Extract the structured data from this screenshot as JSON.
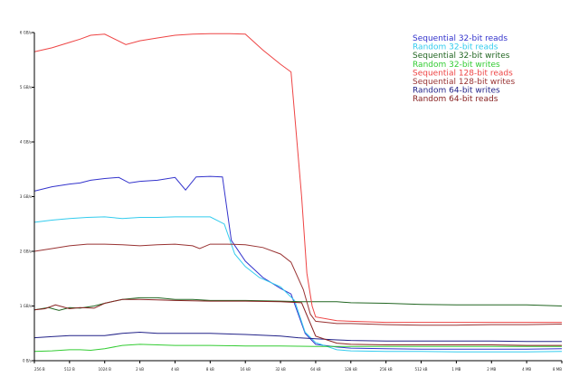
{
  "chart_data": {
    "type": "line",
    "x_scale": "log2",
    "grid": false,
    "legend_position": "top-right",
    "categories": [
      "256 B",
      "512 B",
      "1024 B",
      "2 kB",
      "4 kB",
      "8 kB",
      "16 kB",
      "32 kB",
      "64 kB",
      "128 kB",
      "256 kB",
      "512 kB",
      "1 MB",
      "2 MB",
      "4 MB",
      "8 MB"
    ],
    "yticks": [
      "0 B/s",
      "1 GB/s",
      "2 GB/s",
      "3 GB/s",
      "4 GB/s",
      "5 GB/s",
      "6 GB/s"
    ],
    "ylim": [
      0,
      6
    ],
    "series": [
      {
        "name": "Sequential 32-bit reads",
        "color": "#3333cc",
        "points": [
          [
            0,
            3.1
          ],
          [
            0.5,
            3.18
          ],
          [
            1,
            3.23
          ],
          [
            1.3,
            3.25
          ],
          [
            1.6,
            3.3
          ],
          [
            2,
            3.33
          ],
          [
            2.4,
            3.35
          ],
          [
            2.7,
            3.25
          ],
          [
            3,
            3.28
          ],
          [
            3.5,
            3.3
          ],
          [
            4,
            3.35
          ],
          [
            4.3,
            3.12
          ],
          [
            4.6,
            3.36
          ],
          [
            5,
            3.37
          ],
          [
            5.35,
            3.36
          ],
          [
            5.6,
            2.2
          ],
          [
            6,
            1.82
          ],
          [
            6.5,
            1.52
          ],
          [
            7,
            1.32
          ],
          [
            7.3,
            1.22
          ],
          [
            7.7,
            0.5
          ],
          [
            8,
            0.3
          ],
          [
            8.6,
            0.25
          ],
          [
            9,
            0.23
          ],
          [
            10,
            0.22
          ],
          [
            11,
            0.21
          ],
          [
            12,
            0.21
          ],
          [
            13,
            0.21
          ],
          [
            14,
            0.21
          ],
          [
            15,
            0.22
          ]
        ]
      },
      {
        "name": "Random 32-bit reads",
        "color": "#33ccee",
        "points": [
          [
            0,
            2.53
          ],
          [
            0.5,
            2.57
          ],
          [
            1,
            2.6
          ],
          [
            1.5,
            2.62
          ],
          [
            2,
            2.63
          ],
          [
            2.5,
            2.6
          ],
          [
            3,
            2.62
          ],
          [
            3.5,
            2.62
          ],
          [
            4,
            2.63
          ],
          [
            4.5,
            2.63
          ],
          [
            5,
            2.63
          ],
          [
            5.4,
            2.5
          ],
          [
            5.7,
            1.95
          ],
          [
            6,
            1.72
          ],
          [
            6.4,
            1.52
          ],
          [
            7,
            1.35
          ],
          [
            7.4,
            1.1
          ],
          [
            7.7,
            0.52
          ],
          [
            8,
            0.33
          ],
          [
            8.6,
            0.2
          ],
          [
            9,
            0.18
          ],
          [
            10,
            0.17
          ],
          [
            11,
            0.17
          ],
          [
            12,
            0.16
          ],
          [
            13,
            0.16
          ],
          [
            14,
            0.16
          ],
          [
            15,
            0.17
          ]
        ]
      },
      {
        "name": "Sequential 32-bit writes",
        "color": "#226622",
        "points": [
          [
            0,
            0.93
          ],
          [
            0.4,
            0.97
          ],
          [
            0.7,
            0.92
          ],
          [
            1,
            0.97
          ],
          [
            1.3,
            0.96
          ],
          [
            1.7,
            1.0
          ],
          [
            2,
            1.05
          ],
          [
            2.5,
            1.12
          ],
          [
            3,
            1.15
          ],
          [
            3.5,
            1.15
          ],
          [
            4,
            1.12
          ],
          [
            4.5,
            1.12
          ],
          [
            5,
            1.1
          ],
          [
            6,
            1.1
          ],
          [
            7,
            1.09
          ],
          [
            7.6,
            1.08
          ],
          [
            8,
            1.08
          ],
          [
            8.6,
            1.08
          ],
          [
            9,
            1.06
          ],
          [
            10,
            1.05
          ],
          [
            11,
            1.03
          ],
          [
            12,
            1.02
          ],
          [
            13,
            1.02
          ],
          [
            14,
            1.02
          ],
          [
            15,
            1.0
          ]
        ]
      },
      {
        "name": "Random 32-bit writes",
        "color": "#33cc33",
        "points": [
          [
            0,
            0.17
          ],
          [
            0.5,
            0.18
          ],
          [
            1,
            0.2
          ],
          [
            1.3,
            0.2
          ],
          [
            1.6,
            0.19
          ],
          [
            2,
            0.22
          ],
          [
            2.5,
            0.28
          ],
          [
            3,
            0.3
          ],
          [
            3.5,
            0.29
          ],
          [
            4,
            0.28
          ],
          [
            5,
            0.28
          ],
          [
            6,
            0.27
          ],
          [
            7,
            0.27
          ],
          [
            8,
            0.26
          ],
          [
            9,
            0.26
          ],
          [
            10,
            0.26
          ],
          [
            11,
            0.26
          ],
          [
            12,
            0.26
          ],
          [
            13,
            0.26
          ],
          [
            14,
            0.26
          ],
          [
            15,
            0.26
          ]
        ]
      },
      {
        "name": "Sequential 128-bit reads",
        "color": "#ee4444",
        "points": [
          [
            0,
            5.65
          ],
          [
            0.5,
            5.72
          ],
          [
            1,
            5.82
          ],
          [
            1.3,
            5.88
          ],
          [
            1.6,
            5.95
          ],
          [
            2,
            5.97
          ],
          [
            2.6,
            5.78
          ],
          [
            3,
            5.85
          ],
          [
            3.5,
            5.9
          ],
          [
            4,
            5.95
          ],
          [
            4.5,
            5.97
          ],
          [
            5,
            5.98
          ],
          [
            5.5,
            5.98
          ],
          [
            6,
            5.97
          ],
          [
            6.5,
            5.68
          ],
          [
            7,
            5.42
          ],
          [
            7.3,
            5.28
          ],
          [
            7.6,
            3.0
          ],
          [
            7.75,
            1.6
          ],
          [
            7.9,
            1.0
          ],
          [
            8,
            0.8
          ],
          [
            8.6,
            0.73
          ],
          [
            9,
            0.72
          ],
          [
            10,
            0.7
          ],
          [
            11,
            0.7
          ],
          [
            12,
            0.7
          ],
          [
            13,
            0.7
          ],
          [
            14,
            0.7
          ],
          [
            15,
            0.7
          ]
        ]
      },
      {
        "name": "Sequential 128-bit writes",
        "color": "#993333",
        "points": [
          [
            0,
            2.0
          ],
          [
            0.5,
            2.05
          ],
          [
            1,
            2.1
          ],
          [
            1.5,
            2.13
          ],
          [
            2,
            2.13
          ],
          [
            2.5,
            2.12
          ],
          [
            3,
            2.1
          ],
          [
            3.5,
            2.12
          ],
          [
            4,
            2.13
          ],
          [
            4.5,
            2.1
          ],
          [
            4.7,
            2.05
          ],
          [
            5,
            2.13
          ],
          [
            5.5,
            2.13
          ],
          [
            6,
            2.12
          ],
          [
            6.5,
            2.07
          ],
          [
            7,
            1.95
          ],
          [
            7.3,
            1.8
          ],
          [
            7.65,
            1.3
          ],
          [
            7.85,
            0.85
          ],
          [
            8,
            0.72
          ],
          [
            8.6,
            0.68
          ],
          [
            9,
            0.68
          ],
          [
            10,
            0.66
          ],
          [
            11,
            0.65
          ],
          [
            12,
            0.65
          ],
          [
            13,
            0.66
          ],
          [
            14,
            0.66
          ],
          [
            15,
            0.67
          ]
        ]
      },
      {
        "name": "Random 64-bit writes",
        "color": "#222288",
        "points": [
          [
            0,
            0.42
          ],
          [
            0.5,
            0.44
          ],
          [
            1,
            0.46
          ],
          [
            1.5,
            0.46
          ],
          [
            2,
            0.46
          ],
          [
            2.5,
            0.5
          ],
          [
            3,
            0.52
          ],
          [
            3.5,
            0.5
          ],
          [
            4,
            0.5
          ],
          [
            5,
            0.5
          ],
          [
            6,
            0.48
          ],
          [
            7,
            0.45
          ],
          [
            7.5,
            0.42
          ],
          [
            8,
            0.4
          ],
          [
            8.6,
            0.38
          ],
          [
            9,
            0.37
          ],
          [
            10,
            0.36
          ],
          [
            11,
            0.36
          ],
          [
            12,
            0.36
          ],
          [
            13,
            0.36
          ],
          [
            14,
            0.35
          ],
          [
            15,
            0.35
          ]
        ]
      },
      {
        "name": "Random 64-bit reads",
        "color": "#882222",
        "points": [
          [
            0,
            0.93
          ],
          [
            0.3,
            0.95
          ],
          [
            0.6,
            1.02
          ],
          [
            1,
            0.95
          ],
          [
            1.3,
            0.97
          ],
          [
            1.7,
            0.96
          ],
          [
            2,
            1.05
          ],
          [
            2.5,
            1.12
          ],
          [
            3,
            1.12
          ],
          [
            3.5,
            1.11
          ],
          [
            4,
            1.1
          ],
          [
            5,
            1.09
          ],
          [
            6,
            1.09
          ],
          [
            7,
            1.08
          ],
          [
            7.6,
            1.06
          ],
          [
            8,
            0.45
          ],
          [
            8.6,
            0.32
          ],
          [
            9,
            0.3
          ],
          [
            10,
            0.29
          ],
          [
            11,
            0.29
          ],
          [
            12,
            0.29
          ],
          [
            13,
            0.29
          ],
          [
            14,
            0.28
          ],
          [
            15,
            0.28
          ]
        ]
      }
    ]
  }
}
